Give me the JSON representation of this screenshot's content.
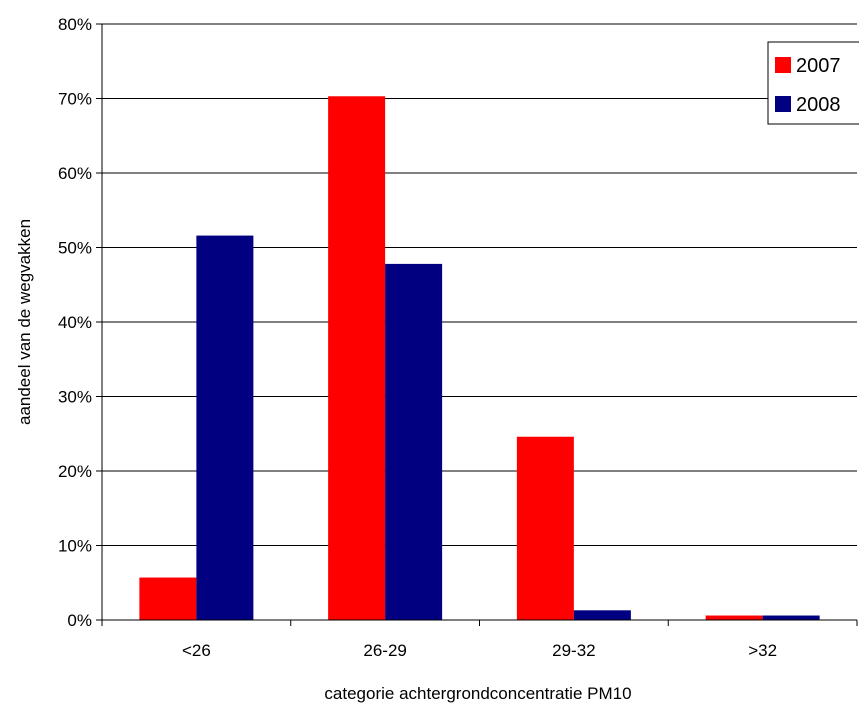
{
  "chart_data": {
    "type": "bar",
    "title": "",
    "xlabel": "categorie achtergrondconcentratie PM10",
    "ylabel": "aandeel van de wegvakken",
    "categories": [
      "<26",
      "26-29",
      "29-32",
      ">32"
    ],
    "series": [
      {
        "name": "2007",
        "color": "#ff0000",
        "values": [
          5.7,
          70.3,
          24.6,
          0.6
        ]
      },
      {
        "name": "2008",
        "color": "#000080",
        "values": [
          51.6,
          47.8,
          1.3,
          0.6
        ]
      }
    ],
    "ylim": [
      0,
      80
    ],
    "yticks": [
      "0%",
      "10%",
      "20%",
      "30%",
      "40%",
      "50%",
      "60%",
      "70%",
      "80%"
    ],
    "grid": true,
    "legend_position": "top-right"
  }
}
